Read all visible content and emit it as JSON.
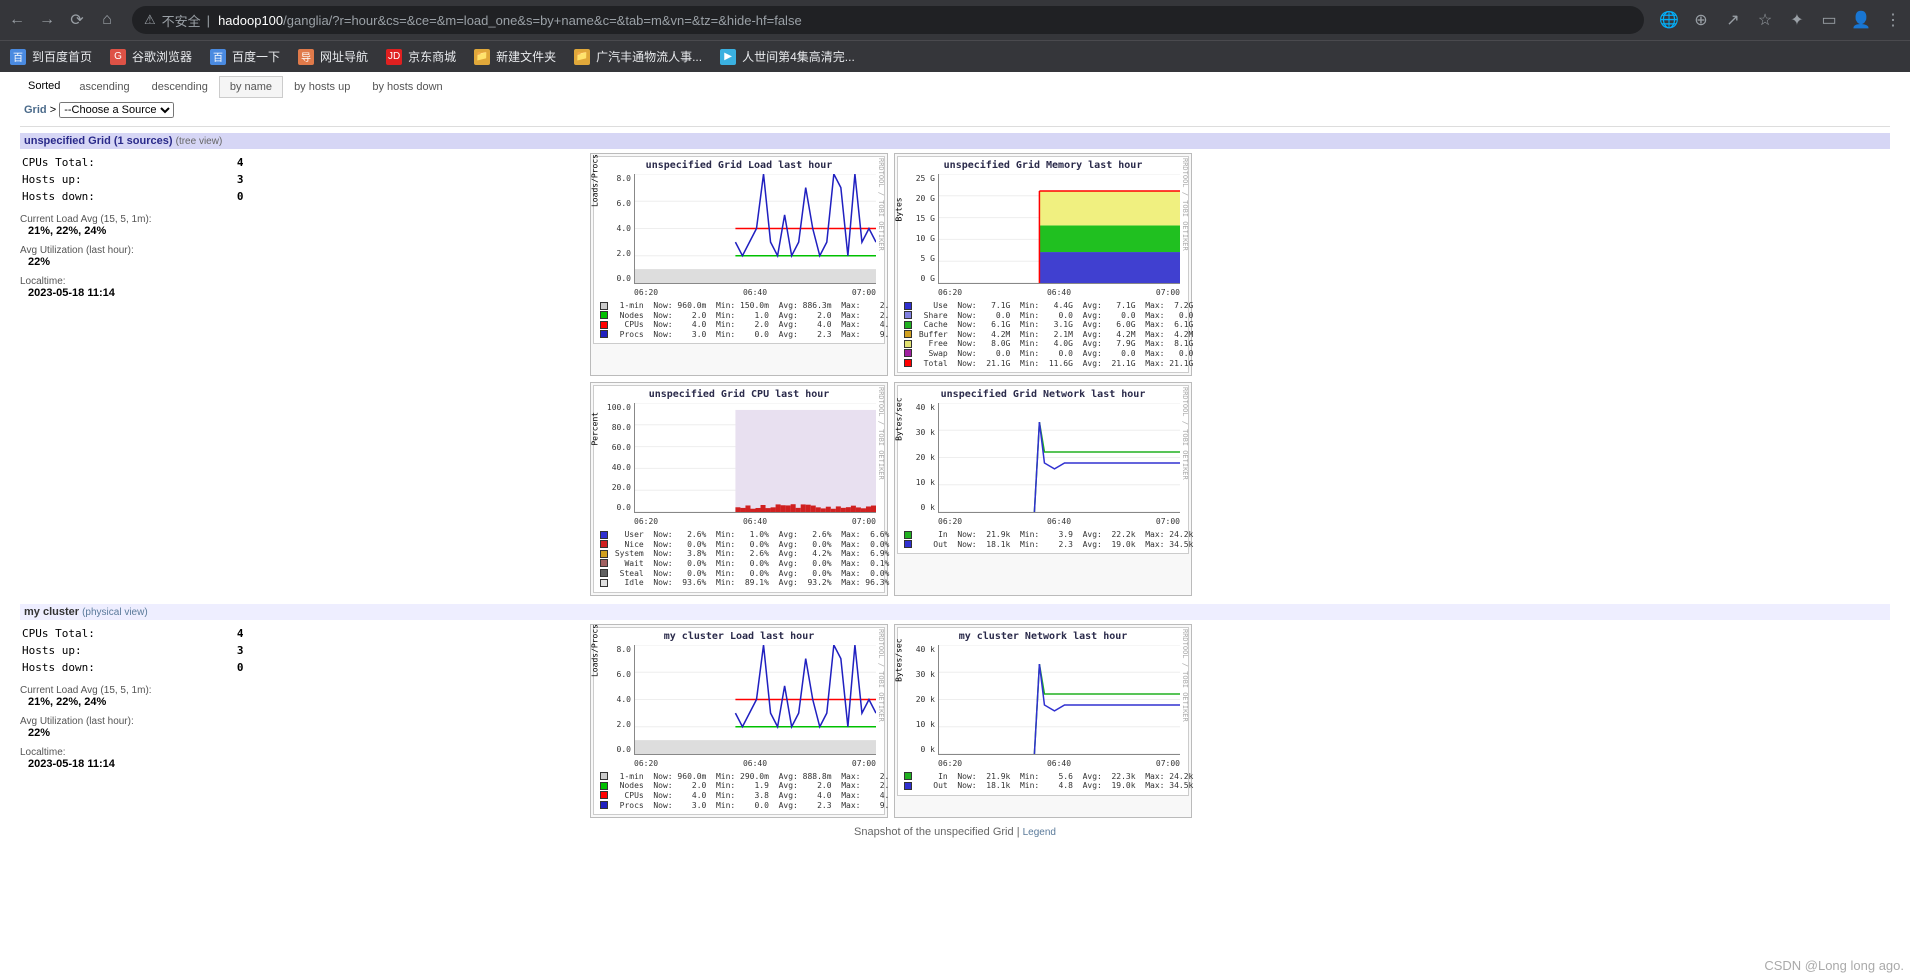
{
  "browser": {
    "insecure_label": "不安全",
    "url_host": "hadoop100",
    "url_path": "/ganglia/?r=hour&cs=&ce=&m=load_one&s=by+name&c=&tab=m&vn=&tz=&hide-hf=false",
    "bookmarks": [
      {
        "label": "到百度首页",
        "icon_bg": "#4a8ae0",
        "icon_txt": "百"
      },
      {
        "label": "谷歌浏览器",
        "icon_bg": "#de5246",
        "icon_txt": "G"
      },
      {
        "label": "百度一下",
        "icon_bg": "#4a8ae0",
        "icon_txt": "百"
      },
      {
        "label": "网址导航",
        "icon_bg": "#e07a4a",
        "icon_txt": "导"
      },
      {
        "label": "京东商城",
        "icon_bg": "#e02020",
        "icon_txt": "JD"
      },
      {
        "label": "新建文件夹",
        "icon_bg": "#e0a83a",
        "icon_txt": "📁"
      },
      {
        "label": "广汽丰通物流人事...",
        "icon_bg": "#e0a83a",
        "icon_txt": "📁"
      },
      {
        "label": "人世间第4集高清完...",
        "icon_bg": "#3ab0e0",
        "icon_txt": "▶"
      }
    ]
  },
  "sort": {
    "label": "Sorted",
    "options": [
      "ascending",
      "descending",
      "by name",
      "by hosts up",
      "by hosts down"
    ],
    "active": "by name"
  },
  "breadcrumb": {
    "grid": "Grid",
    "sep": ">",
    "select": "--Choose a Source"
  },
  "grid_header": {
    "title": "unspecified Grid (1 sources)",
    "tree": "(tree view)"
  },
  "cluster_header": {
    "title": "my cluster",
    "phys": "(physical view)"
  },
  "stats": {
    "cpus_total_label": "CPUs Total:",
    "cpus_total": "4",
    "hosts_up_label": "Hosts up:",
    "hosts_up": "3",
    "hosts_down_label": "Hosts down:",
    "hosts_down": "0",
    "load_label": "Current Load Avg (15, 5, 1m):",
    "load_val": "21%, 22%, 24%",
    "util_label": "Avg Utilization (last hour):",
    "util_val": "22%",
    "time_label": "Localtime:",
    "time_val": "2023-05-18 11:14"
  },
  "chart_load": {
    "title": "unspecified Grid Load last hour",
    "ylabel": "Loads/Procs",
    "ymax": 8,
    "ytick": 2,
    "xticks": [
      "06:20",
      "06:40",
      "07:00"
    ],
    "series": [
      {
        "name": "1-min",
        "color": "#cccccc",
        "now": "960.0m",
        "min": "150.0m",
        "avg": "886.3m",
        "max": "2."
      },
      {
        "name": "Nodes",
        "color": "#00c000",
        "now": "2.0",
        "min": "1.0",
        "avg": "2.0",
        "max": "2."
      },
      {
        "name": "CPUs",
        "color": "#ff0000",
        "now": "4.0",
        "min": "2.0",
        "avg": "4.0",
        "max": "4."
      },
      {
        "name": "Procs",
        "color": "#2020c0",
        "now": "3.0",
        "min": "0.0",
        "avg": "2.3",
        "max": "9."
      }
    ]
  },
  "chart_mem": {
    "title": "unspecified Grid Memory last hour",
    "ylabel": "Bytes",
    "ymax": 25,
    "ytick": 5,
    "unit": "G",
    "xticks": [
      "06:20",
      "06:40",
      "07:00"
    ],
    "series": [
      {
        "name": "Use",
        "color": "#3030d0",
        "now": "7.1G",
        "min": "4.4G",
        "avg": "7.1G",
        "max": "7.2G"
      },
      {
        "name": "Share",
        "color": "#8080e0",
        "now": "0.0",
        "min": "0.0",
        "avg": "0.0",
        "max": "0.0"
      },
      {
        "name": "Cache",
        "color": "#20b020",
        "now": "6.1G",
        "min": "3.1G",
        "avg": "6.0G",
        "max": "6.1G"
      },
      {
        "name": "Buffer",
        "color": "#d0a020",
        "now": "4.2M",
        "min": "2.1M",
        "avg": "4.2M",
        "max": "4.2M"
      },
      {
        "name": "Free",
        "color": "#e0e070",
        "now": "8.0G",
        "min": "4.0G",
        "avg": "7.9G",
        "max": "8.1G"
      },
      {
        "name": "Swap",
        "color": "#a020a0",
        "now": "0.0",
        "min": "0.0",
        "avg": "0.0",
        "max": "0.0"
      },
      {
        "name": "Total",
        "color": "#ff0000",
        "now": "21.1G",
        "min": "11.6G",
        "avg": "21.1G",
        "max": "21.1G"
      }
    ]
  },
  "chart_cpu": {
    "title": "unspecified Grid CPU last hour",
    "ylabel": "Percent",
    "ymax": 100,
    "ytick": 20,
    "xticks": [
      "06:20",
      "06:40",
      "07:00"
    ],
    "series": [
      {
        "name": "User",
        "color": "#3030d0",
        "now": "2.6%",
        "min": "1.0%",
        "avg": "2.6%",
        "max": "6.6%"
      },
      {
        "name": "Nice",
        "color": "#d02020",
        "now": "0.0%",
        "min": "0.0%",
        "avg": "0.0%",
        "max": "0.0%"
      },
      {
        "name": "System",
        "color": "#d0a020",
        "now": "3.8%",
        "min": "2.6%",
        "avg": "4.2%",
        "max": "6.9%"
      },
      {
        "name": "Wait",
        "color": "#a06060",
        "now": "0.0%",
        "min": "0.0%",
        "avg": "0.0%",
        "max": "0.1%"
      },
      {
        "name": "Steal",
        "color": "#606060",
        "now": "0.0%",
        "min": "0.0%",
        "avg": "0.0%",
        "max": "0.0%"
      },
      {
        "name": "Idle",
        "color": "#e0e0e0",
        "now": "93.6%",
        "min": "89.1%",
        "avg": "93.2%",
        "max": "96.3%"
      }
    ]
  },
  "chart_net": {
    "title": "unspecified Grid Network last hour",
    "ylabel": "Bytes/sec",
    "ymax": 40,
    "ytick": 10,
    "unit": "k",
    "xticks": [
      "06:20",
      "06:40",
      "07:00"
    ],
    "series": [
      {
        "name": "In",
        "color": "#20b020",
        "now": "21.9k",
        "min": "3.9",
        "avg": "22.2k",
        "max": "24.2k"
      },
      {
        "name": "Out",
        "color": "#3030d0",
        "now": "18.1k",
        "min": "2.3",
        "avg": "19.0k",
        "max": "34.5k"
      }
    ]
  },
  "chart_load2": {
    "title": "my cluster Load last hour",
    "ylabel": "Loads/Procs",
    "ymax": 8,
    "ytick": 2,
    "xticks": [
      "06:20",
      "06:40",
      "07:00"
    ],
    "series": [
      {
        "name": "1-min",
        "color": "#cccccc",
        "now": "960.0m",
        "min": "290.0m",
        "avg": "888.8m",
        "max": "2."
      },
      {
        "name": "Nodes",
        "color": "#00c000",
        "now": "2.0",
        "min": "1.9",
        "avg": "2.0",
        "max": "2."
      },
      {
        "name": "CPUs",
        "color": "#ff0000",
        "now": "4.0",
        "min": "3.8",
        "avg": "4.0",
        "max": "4."
      },
      {
        "name": "Procs",
        "color": "#2020c0",
        "now": "3.0",
        "min": "0.0",
        "avg": "2.3",
        "max": "9."
      }
    ]
  },
  "chart_net2": {
    "title": "my cluster Network last hour",
    "ylabel": "Bytes/sec",
    "ymax": 40,
    "ytick": 10,
    "unit": "k",
    "xticks": [
      "06:20",
      "06:40",
      "07:00"
    ],
    "series": [
      {
        "name": "In",
        "color": "#20b020",
        "now": "21.9k",
        "min": "5.6",
        "avg": "22.3k",
        "max": "24.2k"
      },
      {
        "name": "Out",
        "color": "#3030d0",
        "now": "18.1k",
        "min": "4.8",
        "avg": "19.0k",
        "max": "34.5k"
      }
    ]
  },
  "snapshot": {
    "text": "Snapshot of the unspecified Grid",
    "sep": "|",
    "legend": "Legend"
  },
  "watermark": "CSDN @Long long ago."
}
